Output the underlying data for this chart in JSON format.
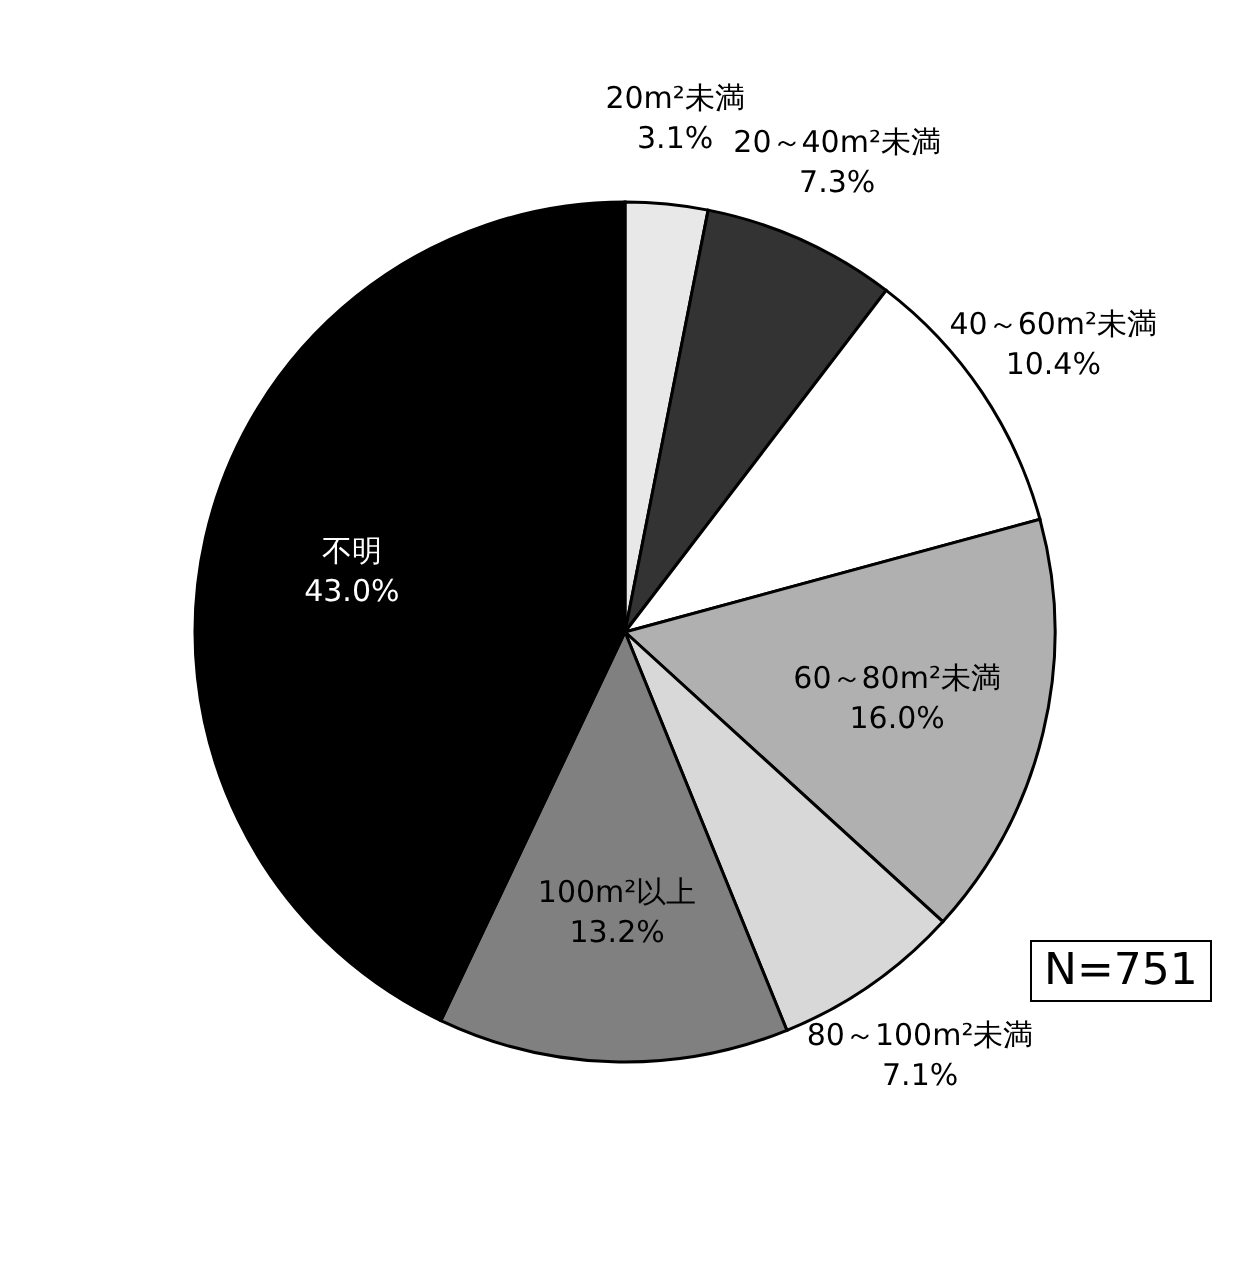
{
  "chart_data": {
    "type": "pie",
    "categories": [
      "20m²未満",
      "20～40m²未満",
      "40～60m²未満",
      "60～80m²未満",
      "80～100m²未満",
      "100m²以上",
      "不明"
    ],
    "values": [
      3.1,
      7.3,
      10.4,
      16.0,
      7.1,
      13.2,
      43.0
    ],
    "value_labels": [
      "3.1%",
      "7.3%",
      "10.4%",
      "16.0%",
      "7.1%",
      "13.2%",
      "43.0%"
    ],
    "colors": [
      "#e8e8e8",
      "#333333",
      "#ffffff",
      "#b0b0b0",
      "#d8d8d8",
      "#808080",
      "#000000"
    ],
    "annotations": [
      "N=751"
    ]
  }
}
